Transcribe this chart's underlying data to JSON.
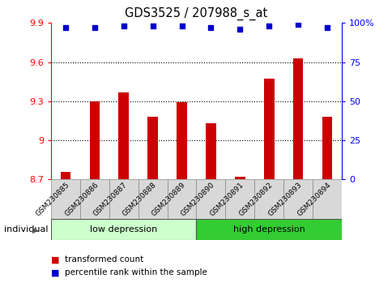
{
  "title": "GDS3525 / 207988_s_at",
  "samples": [
    "GSM230885",
    "GSM230886",
    "GSM230887",
    "GSM230888",
    "GSM230889",
    "GSM230890",
    "GSM230891",
    "GSM230892",
    "GSM230893",
    "GSM230894"
  ],
  "bar_values": [
    8.76,
    9.3,
    9.37,
    9.18,
    9.29,
    9.13,
    8.72,
    9.47,
    9.63,
    9.18
  ],
  "percentile_values": [
    97,
    97,
    98,
    98,
    98,
    97,
    96,
    98,
    99,
    97
  ],
  "ylim_left": [
    8.7,
    9.9
  ],
  "ylim_right": [
    0,
    100
  ],
  "yticks_left": [
    8.7,
    9.0,
    9.3,
    9.6,
    9.9
  ],
  "yticks_right": [
    0,
    25,
    50,
    75,
    100
  ],
  "ytick_labels_left": [
    "8.7",
    "9",
    "9.3",
    "9.6",
    "9.9"
  ],
  "ytick_labels_right": [
    "0",
    "25",
    "50",
    "75",
    "100%"
  ],
  "grid_lines": [
    9.0,
    9.3,
    9.6
  ],
  "bar_color": "#cc0000",
  "dot_color": "#0000cc",
  "group1_label": "low depression",
  "group2_label": "high depression",
  "group1_count": 5,
  "group2_count": 5,
  "group1_color": "#ccffcc",
  "group2_color": "#33cc33",
  "individual_label": "individual",
  "legend_bar_label": "transformed count",
  "legend_dot_label": "percentile rank within the sample",
  "bar_width": 0.35,
  "background_color": "#ffffff",
  "tick_area_color": "#d8d8d8"
}
